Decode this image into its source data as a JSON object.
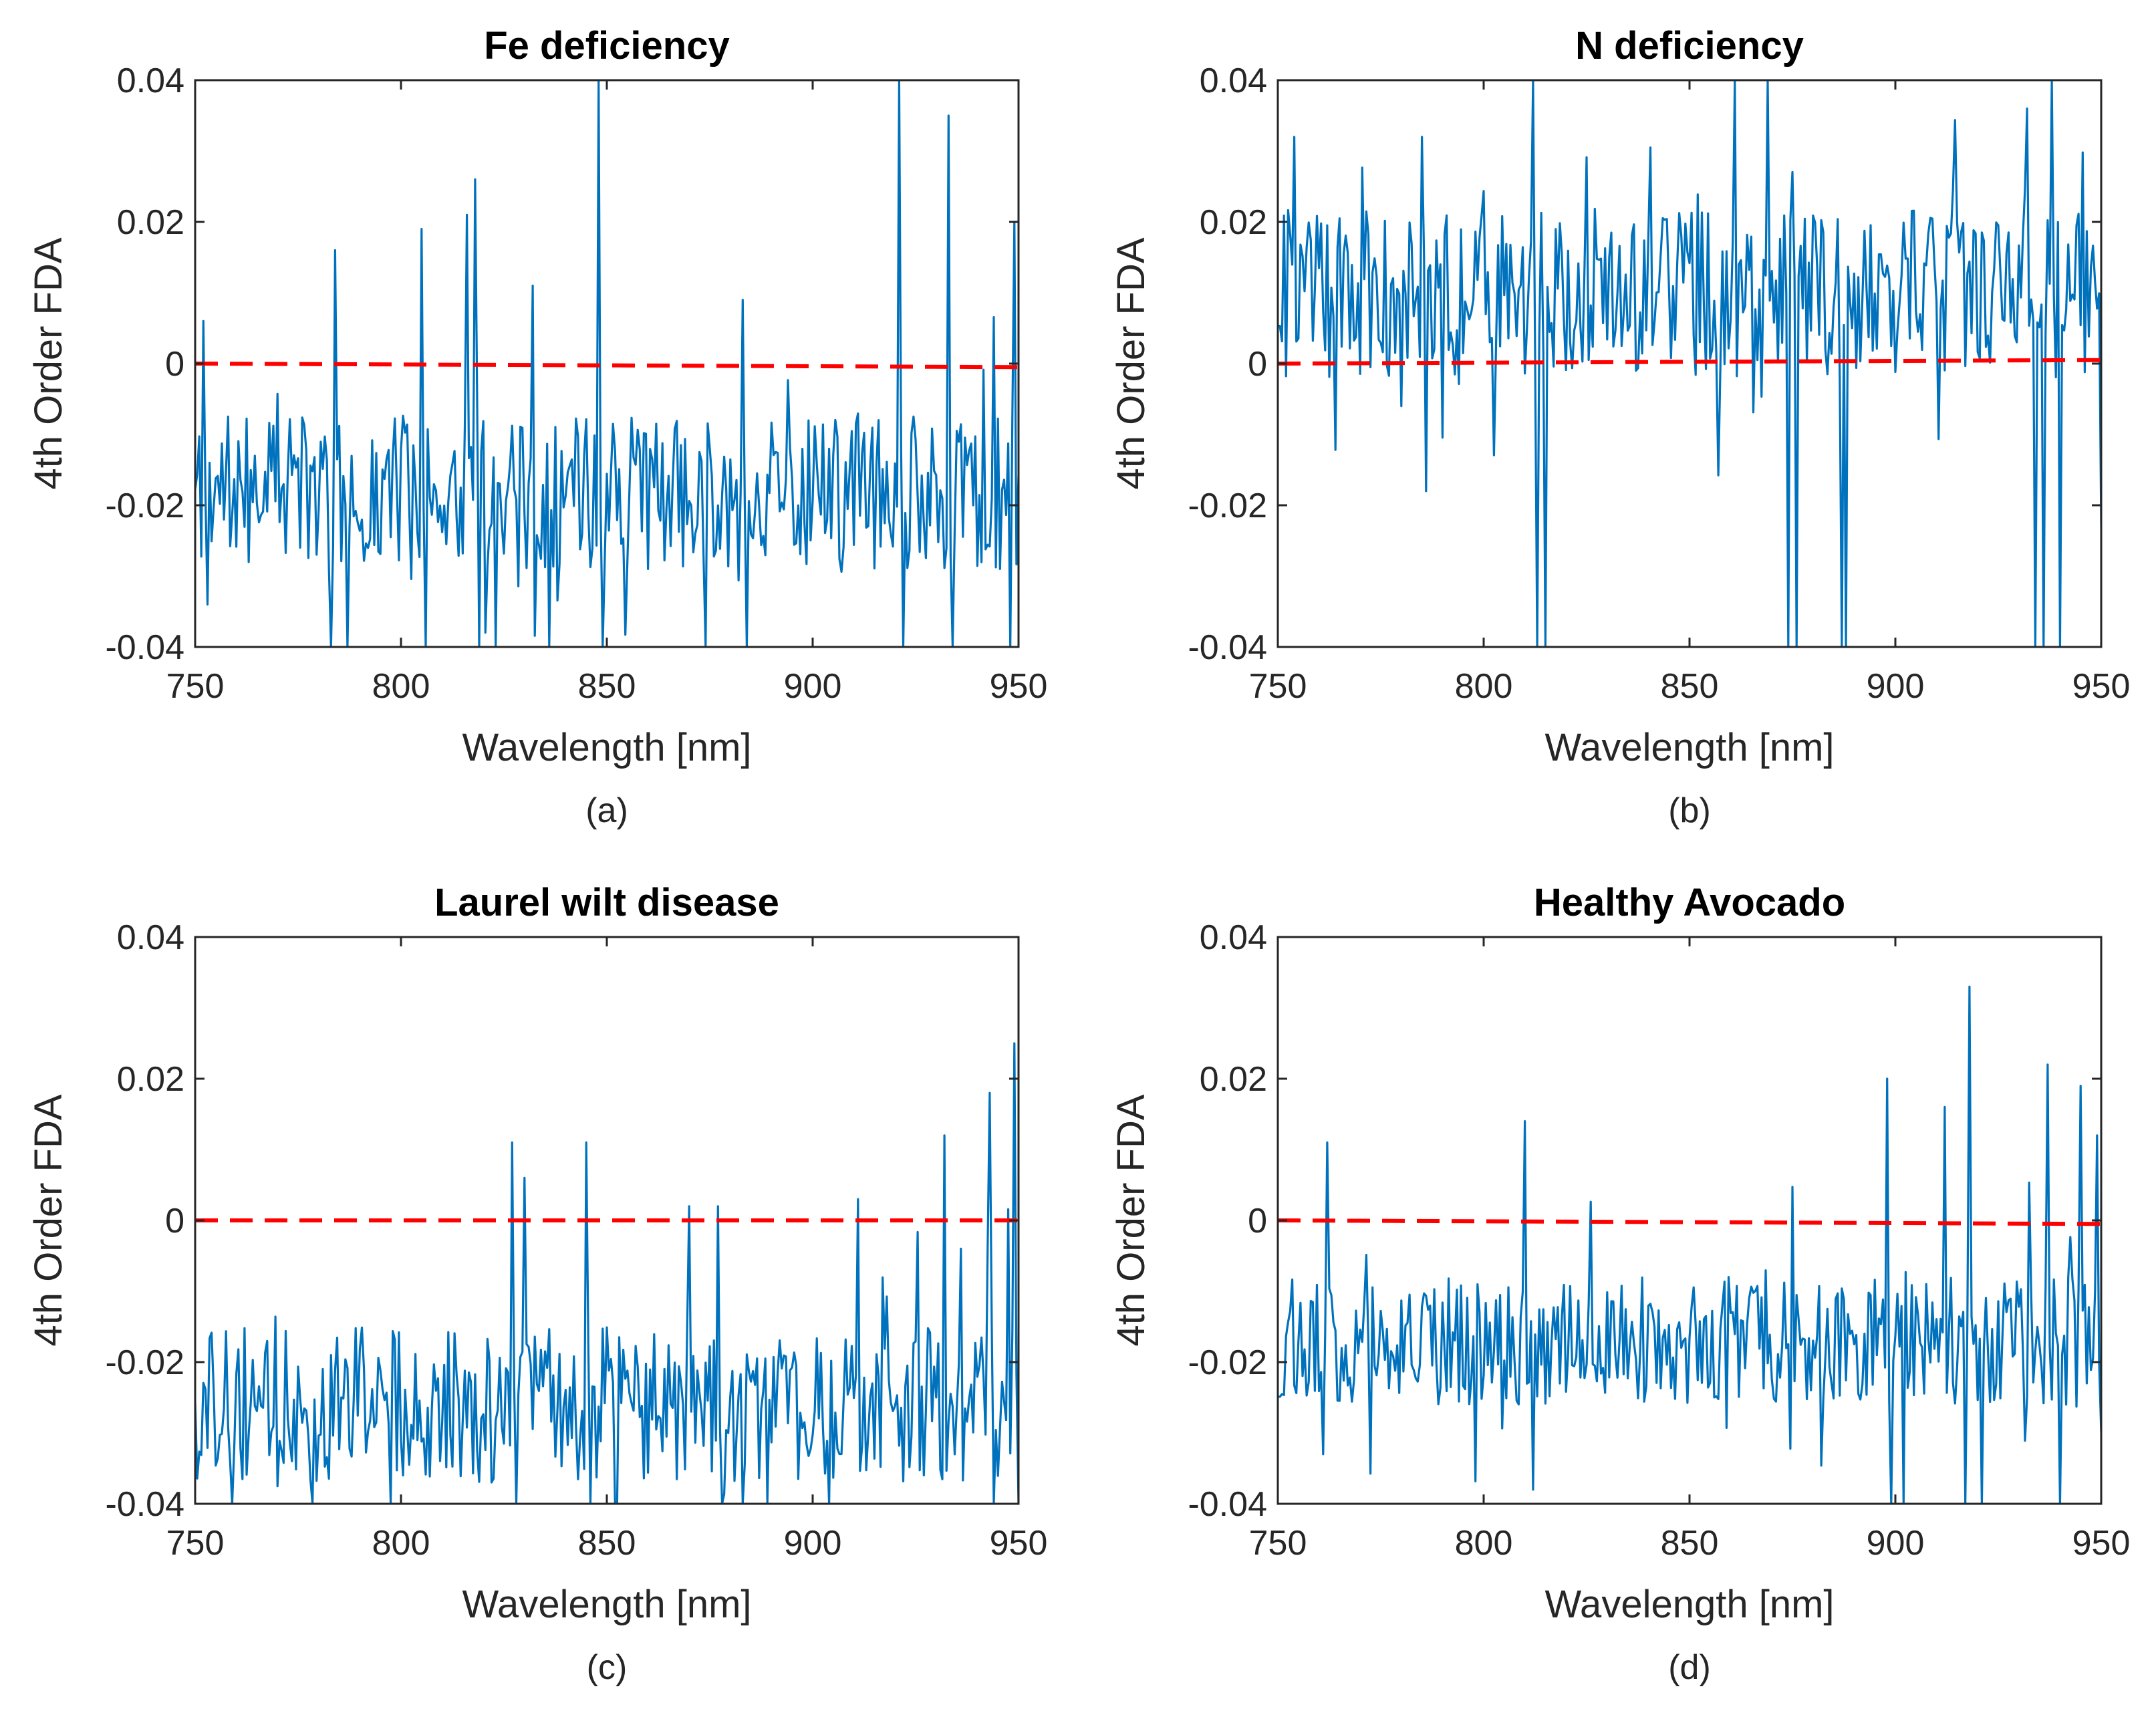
{
  "figure": {
    "colors": {
      "series": "#0072BD",
      "reference": "#FF0000",
      "axis": "#262626"
    }
  },
  "chart_data": [
    {
      "type": "line",
      "title": "Fe deficiency",
      "caption": "(a)",
      "xlabel": "Wavelength [nm]",
      "ylabel": "4th Order FDA",
      "xlim": [
        750,
        950
      ],
      "ylim": [
        -0.04,
        0.04
      ],
      "xticks": [
        750,
        800,
        850,
        900,
        950
      ],
      "xtick_labels": [
        "750",
        "800",
        "850",
        "900",
        "950"
      ],
      "yticks": [
        -0.04,
        -0.02,
        0,
        0.02,
        0.04
      ],
      "ytick_labels": [
        "-0.04",
        "-0.02",
        "0",
        "0.02",
        "0.04"
      ],
      "series": [
        {
          "name": "4th Order FDA",
          "color": "#0072BD",
          "base": -0.018,
          "noise": 0.011,
          "seed": 11,
          "spikes": [
            [
              752,
              0.006
            ],
            [
              753,
              -0.034
            ],
            [
              784,
              0.016
            ],
            [
              783,
              -0.04
            ],
            [
              787,
              -0.04
            ],
            [
              805,
              0.019
            ],
            [
              806,
              -0.04
            ],
            [
              816,
              0.021
            ],
            [
              818,
              0.026
            ],
            [
              819,
              -0.04
            ],
            [
              823,
              -0.04
            ],
            [
              832,
              0.011
            ],
            [
              848,
              0.04
            ],
            [
              849,
              -0.04
            ],
            [
              883,
              0.009
            ],
            [
              884,
              -0.04
            ],
            [
              921,
              0.04
            ],
            [
              922,
              -0.04
            ],
            [
              933,
              0.035
            ],
            [
              934,
              -0.04
            ],
            [
              949,
              0.02
            ],
            [
              948,
              -0.04
            ]
          ]
        },
        {
          "name": "zero line",
          "color": "#FF0000",
          "dashed": true,
          "points": [
            [
              750,
              0.0
            ],
            [
              950,
              -0.0005
            ]
          ]
        }
      ]
    },
    {
      "type": "line",
      "title": "N deficiency",
      "caption": "(b)",
      "xlabel": "Wavelength [nm]",
      "ylabel": "4th Order FDA",
      "xlim": [
        750,
        950
      ],
      "ylim": [
        -0.04,
        0.04
      ],
      "xticks": [
        750,
        800,
        850,
        900,
        950
      ],
      "xtick_labels": [
        "750",
        "800",
        "850",
        "900",
        "950"
      ],
      "yticks": [
        -0.04,
        -0.02,
        0,
        0.02,
        0.04
      ],
      "ytick_labels": [
        "-0.04",
        "-0.02",
        "0",
        "0.02",
        "0.04"
      ],
      "series": [
        {
          "name": "4th Order FDA",
          "color": "#0072BD",
          "base": 0.01,
          "noise": 0.012,
          "seed": 23,
          "spikes": [
            [
              754,
              0.032
            ],
            [
              785,
              0.032
            ],
            [
              786,
              -0.018
            ],
            [
              812,
              0.04
            ],
            [
              813,
              -0.04
            ],
            [
              815,
              -0.04
            ],
            [
              861,
              0.04
            ],
            [
              869,
              0.04
            ],
            [
              874,
              -0.04
            ],
            [
              876,
              -0.04
            ],
            [
              887,
              -0.04
            ],
            [
              888,
              -0.04
            ],
            [
              932,
              0.036
            ],
            [
              934,
              -0.04
            ],
            [
              936,
              -0.04
            ],
            [
              938,
              0.04
            ],
            [
              940,
              -0.04
            ],
            [
              950,
              -0.023
            ]
          ]
        },
        {
          "name": "zero line",
          "color": "#FF0000",
          "dashed": true,
          "points": [
            [
              750,
              0.0
            ],
            [
              950,
              0.0005
            ]
          ]
        }
      ]
    },
    {
      "type": "line",
      "title": "Laurel wilt disease",
      "caption": "(c)",
      "xlabel": "Wavelength [nm]",
      "ylabel": "4th Order FDA",
      "xlim": [
        750,
        950
      ],
      "ylim": [
        -0.04,
        0.04
      ],
      "xticks": [
        750,
        800,
        850,
        900,
        950
      ],
      "xtick_labels": [
        "750",
        "800",
        "850",
        "900",
        "950"
      ],
      "yticks": [
        -0.04,
        -0.02,
        0,
        0.02,
        0.04
      ],
      "ytick_labels": [
        "-0.04",
        "-0.02",
        "0",
        "0.02",
        "0.04"
      ],
      "series": [
        {
          "name": "4th Order FDA",
          "color": "#0072BD",
          "base": -0.026,
          "noise": 0.011,
          "seed": 37,
          "spikes": [
            [
              759,
              -0.04
            ],
            [
              827,
              0.011
            ],
            [
              828,
              -0.04
            ],
            [
              830,
              0.006
            ],
            [
              845,
              0.011
            ],
            [
              846,
              -0.04
            ],
            [
              870,
              0.002
            ],
            [
              877,
              0.002
            ],
            [
              878,
              -0.04
            ],
            [
              911,
              0.003
            ],
            [
              932,
              0.012
            ],
            [
              943,
              0.018
            ],
            [
              944,
              -0.04
            ],
            [
              949,
              0.025
            ],
            [
              950,
              -0.04
            ]
          ]
        },
        {
          "name": "zero line",
          "color": "#FF0000",
          "dashed": true,
          "points": [
            [
              750,
              0.0
            ],
            [
              950,
              0.0
            ]
          ]
        }
      ]
    },
    {
      "type": "line",
      "title": "Healthy Avocado",
      "caption": "(d)",
      "xlabel": "Wavelength [nm]",
      "ylabel": "4th Order FDA",
      "xlim": [
        750,
        950
      ],
      "ylim": [
        -0.04,
        0.04
      ],
      "xticks": [
        750,
        800,
        850,
        900,
        950
      ],
      "xtick_labels": [
        "750",
        "800",
        "850",
        "900",
        "950"
      ],
      "yticks": [
        -0.04,
        -0.02,
        0,
        0.02,
        0.04
      ],
      "ytick_labels": [
        "-0.04",
        "-0.02",
        "0",
        "0.02",
        "0.04"
      ],
      "series": [
        {
          "name": "4th Order FDA",
          "color": "#0072BD",
          "base": -0.017,
          "noise": 0.009,
          "seed": 53,
          "spikes": [
            [
              762,
              0.011
            ],
            [
              761,
              -0.033
            ],
            [
              810,
              0.014
            ],
            [
              812,
              -0.038
            ],
            [
              898,
              0.02
            ],
            [
              899,
              -0.04
            ],
            [
              902,
              -0.04
            ],
            [
              912,
              0.016
            ],
            [
              918,
              0.033
            ],
            [
              917,
              -0.04
            ],
            [
              921,
              -0.04
            ],
            [
              937,
              0.022
            ],
            [
              940,
              -0.04
            ],
            [
              945,
              0.019
            ],
            [
              949,
              0.012
            ],
            [
              950,
              -0.03
            ]
          ]
        },
        {
          "name": "zero line",
          "color": "#FF0000",
          "dashed": true,
          "points": [
            [
              750,
              0.0
            ],
            [
              950,
              -0.0005
            ]
          ]
        }
      ]
    }
  ]
}
